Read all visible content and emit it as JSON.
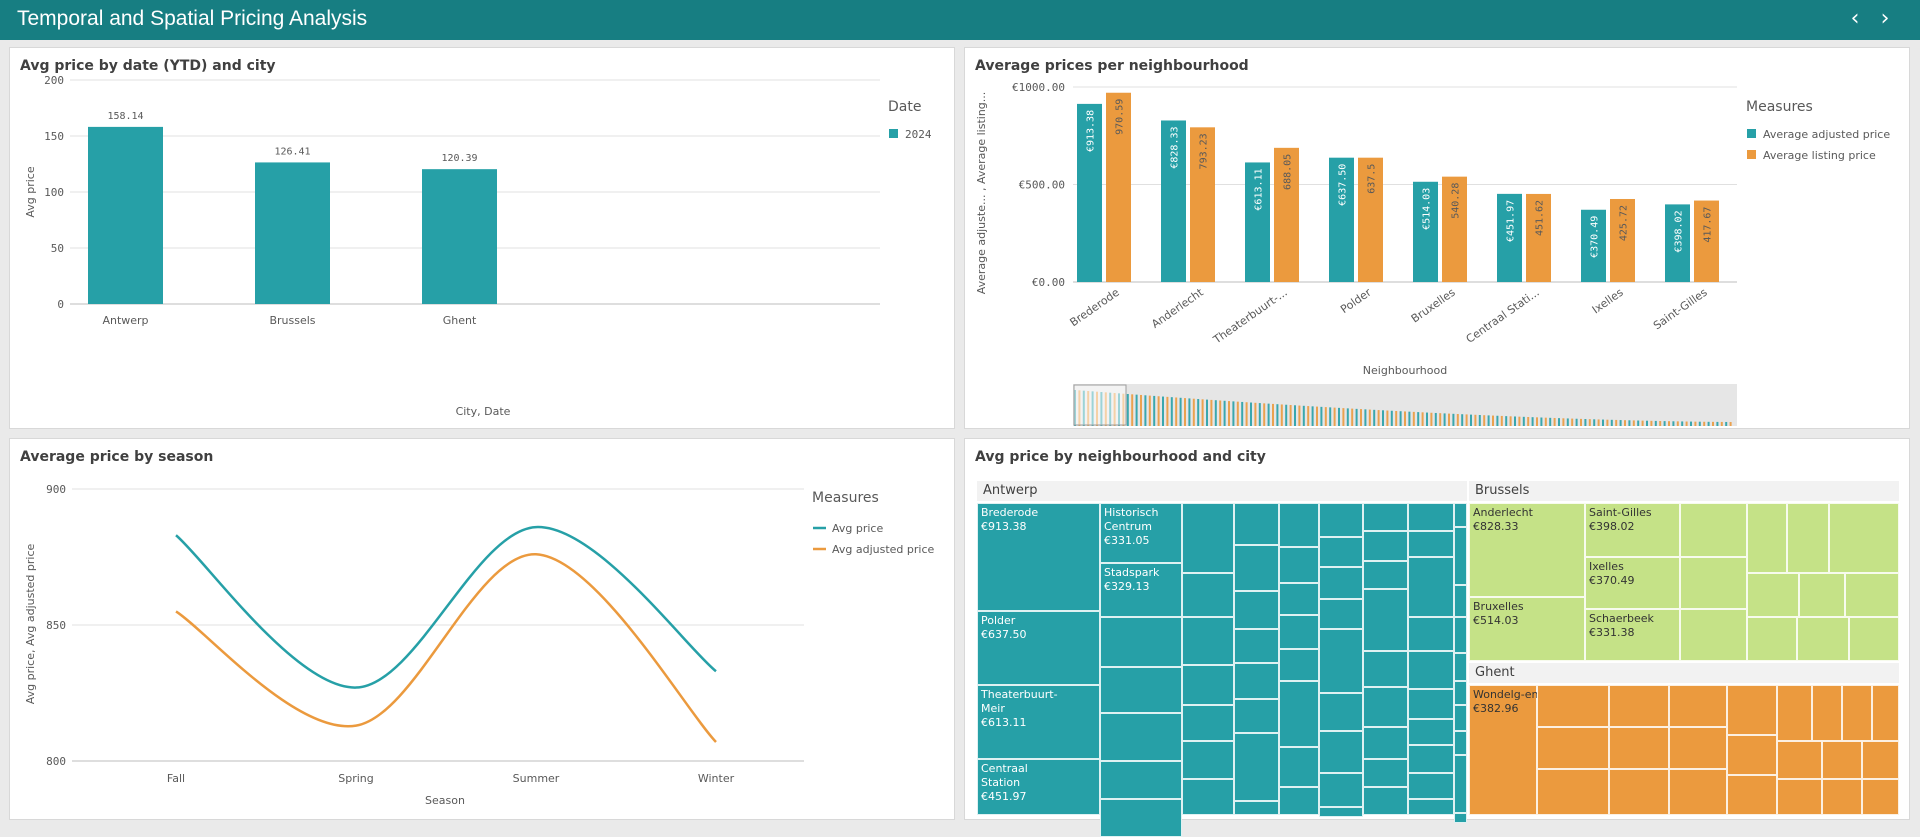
{
  "header": {
    "title": "Temporal and Spatial Pricing Analysis"
  },
  "colors": {
    "teal": "#26a0a7",
    "orange": "#eb9a3e",
    "green": "#c5e287",
    "header": "#177e82"
  },
  "chart1": {
    "title": "Avg price by date (YTD) and city",
    "legend_title": "Date",
    "chart_data": {
      "type": "bar",
      "title": "Avg price by date (YTD) and city",
      "xlabel": "City, Date",
      "ylabel": "Avg price",
      "categories": [
        "Antwerp",
        "Brussels",
        "Ghent"
      ],
      "series": [
        {
          "name": "2024",
          "values": [
            158.14,
            126.41,
            120.39
          ]
        }
      ],
      "value_labels": [
        "158.14",
        "126.41",
        "120.39"
      ],
      "yticks": [
        "0",
        "50",
        "100",
        "150",
        "200"
      ],
      "ylim": [
        0,
        200
      ],
      "legend": "right"
    }
  },
  "chart2": {
    "title": "Average prices per neighbourhood",
    "legend_title": "Measures",
    "chart_data": {
      "type": "bar",
      "title": "Average prices per neighbourhood",
      "xlabel": "Neighbourhood",
      "ylabel": "Average adjuste... , Average listing...",
      "categories": [
        "Brederode",
        "Anderlecht",
        "Theaterbuurt-...",
        "Polder",
        "Bruxelles",
        "Centraal Stati...",
        "Ixelles",
        "Saint-Gilles"
      ],
      "series": [
        {
          "name": "Average adjusted price",
          "values": [
            913.38,
            828.33,
            613.11,
            637.5,
            514.03,
            451.97,
            370.49,
            398.02
          ],
          "labels": [
            "€913.38",
            "€828.33",
            "€613.11",
            "€637.50",
            "€514.03",
            "€451.97",
            "€370.49",
            "€398.02"
          ]
        },
        {
          "name": "Average listing price",
          "values": [
            970.59,
            793.23,
            688.05,
            637.5,
            540.28,
            451.62,
            425.72,
            417.67
          ],
          "labels": [
            "970.59",
            "793.23",
            "688.05",
            "637.5",
            "540.28",
            "451.62",
            "425.72",
            "417.67"
          ]
        }
      ],
      "yticks": [
        "€0.00",
        "€500.00",
        "€1000.00"
      ],
      "ylim": [
        0,
        1000
      ],
      "legend": "right"
    }
  },
  "chart3": {
    "title": "Average price by season",
    "legend_title": "Measures",
    "chart_data": {
      "type": "line",
      "title": "Average price by season",
      "xlabel": "Season",
      "ylabel": "Avg price, Avg adjusted price",
      "categories": [
        "Fall",
        "Spring",
        "Summer",
        "Winter"
      ],
      "series": [
        {
          "name": "Avg price",
          "values": [
            883,
            827,
            886,
            833
          ]
        },
        {
          "name": "Avg adjusted price",
          "values": [
            855,
            813,
            876,
            807
          ]
        }
      ],
      "yticks": [
        "800",
        "850",
        "900"
      ],
      "ylim": [
        800,
        900
      ],
      "legend": "right"
    }
  },
  "chart4": {
    "title": "Avg price by neighbourhood and city",
    "chart_data": {
      "type": "treemap",
      "groups": [
        {
          "name": "Antwerp",
          "items": [
            {
              "name": "Brederode",
              "value": "€913.38"
            },
            {
              "name": "Historisch Centrum",
              "value": "€331.05"
            },
            {
              "name": "Stadspark",
              "value": "€329.13"
            },
            {
              "name": "Polder",
              "value": "€637.50"
            },
            {
              "name": "Theaterbuurt-Meir",
              "value": "€613.11"
            },
            {
              "name": "Centraal Station",
              "value": "€451.97"
            }
          ]
        },
        {
          "name": "Brussels",
          "items": [
            {
              "name": "Anderlecht",
              "value": "€828.33"
            },
            {
              "name": "Saint-Gilles",
              "value": "€398.02"
            },
            {
              "name": "Ixelles",
              "value": "€370.49"
            },
            {
              "name": "Bruxelles",
              "value": "€514.03"
            },
            {
              "name": "Schaerbeek",
              "value": "€331.38"
            }
          ]
        },
        {
          "name": "Ghent",
          "items": [
            {
              "name": "Wondelg-em",
              "value": "€382.96"
            }
          ]
        }
      ]
    }
  }
}
